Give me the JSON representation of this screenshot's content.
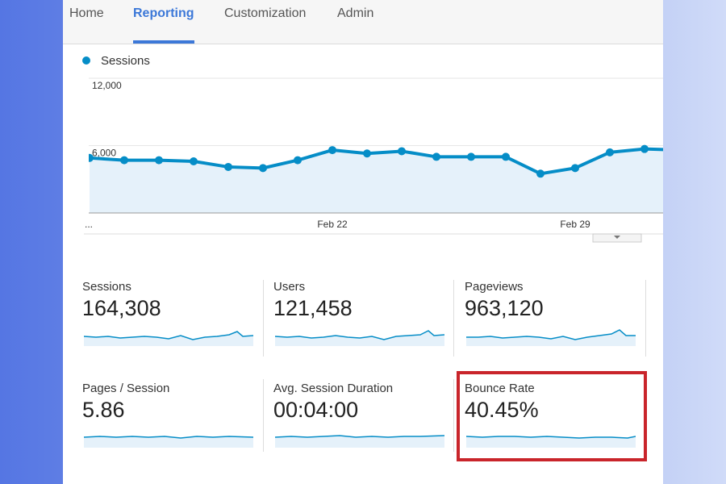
{
  "nav": [
    {
      "label": "Home",
      "active": false
    },
    {
      "label": "Reporting",
      "active": true
    },
    {
      "label": "Customization",
      "active": false
    },
    {
      "label": "Admin",
      "active": false
    }
  ],
  "chart_data": {
    "type": "line",
    "categories": [
      "...",
      null,
      null,
      null,
      null,
      null,
      null,
      "Feb 22",
      null,
      null,
      null,
      null,
      null,
      null,
      "Feb 29",
      null,
      null,
      null
    ],
    "series": [
      {
        "name": "Sessions",
        "color": "#058dc7",
        "values": [
          4900,
          4700,
          4700,
          4600,
          4100,
          4000,
          4700,
          5600,
          5300,
          5500,
          5000,
          5000,
          5000,
          3500,
          4000,
          5400,
          5700,
          5600
        ]
      }
    ],
    "ylim": [
      0,
      12000
    ],
    "yticks": [
      {
        "value": 6000,
        "label": "6,000"
      },
      {
        "value": 12000,
        "label": "12,000"
      }
    ],
    "grid": true
  },
  "metrics": [
    {
      "label": "Sessions",
      "value": "164,308"
    },
    {
      "label": "Users",
      "value": "121,458"
    },
    {
      "label": "Pageviews",
      "value": "963,120"
    },
    {
      "label": "Pages / Session",
      "value": "5.86"
    },
    {
      "label": "Avg. Session Duration",
      "value": "00:04:00"
    },
    {
      "label": "Bounce Rate",
      "value": "40.45%"
    }
  ]
}
